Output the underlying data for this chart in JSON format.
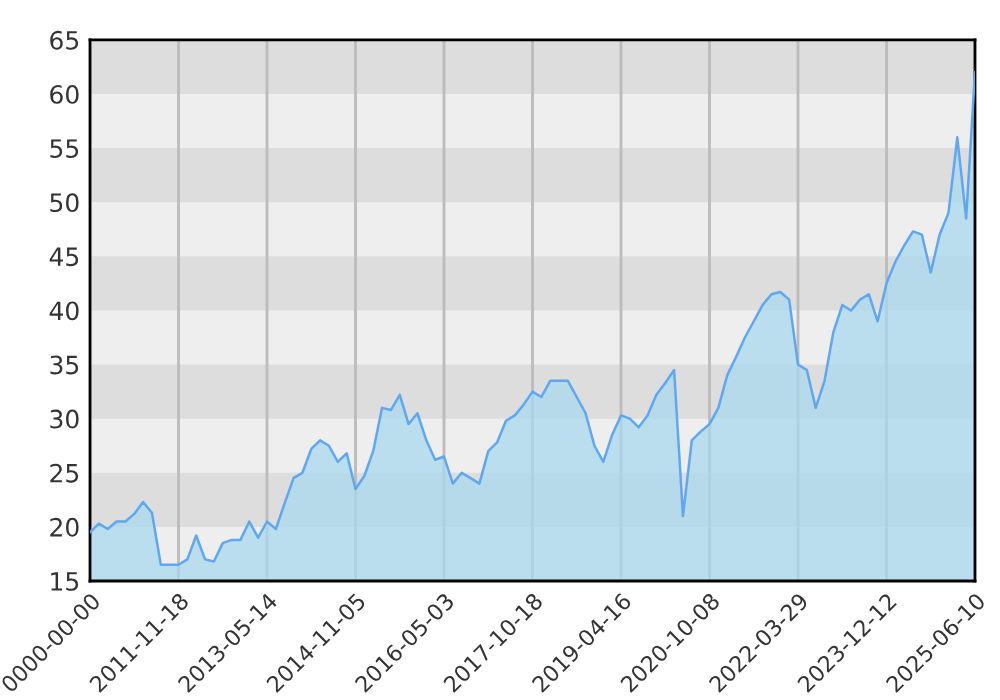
{
  "chart_data": {
    "type": "area",
    "categories": [
      "0000-00-00",
      null,
      null,
      null,
      null,
      null,
      null,
      null,
      null,
      null,
      "2011-11-18",
      null,
      null,
      null,
      null,
      null,
      null,
      null,
      null,
      null,
      "2013-05-14",
      null,
      null,
      null,
      null,
      null,
      null,
      null,
      null,
      null,
      "2014-11-05",
      null,
      null,
      null,
      null,
      null,
      null,
      null,
      null,
      null,
      "2016-05-03",
      null,
      null,
      null,
      null,
      null,
      null,
      null,
      null,
      null,
      "2017-10-18",
      null,
      null,
      null,
      null,
      null,
      null,
      null,
      null,
      null,
      "2019-04-16",
      null,
      null,
      null,
      null,
      null,
      null,
      null,
      null,
      null,
      "2020-10-08",
      null,
      null,
      null,
      null,
      null,
      null,
      null,
      null,
      null,
      "2022-03-29",
      null,
      null,
      null,
      null,
      null,
      null,
      null,
      null,
      null,
      "2023-12-12",
      null,
      null,
      null,
      null,
      null,
      null,
      null,
      null,
      null,
      "2025-06-10"
    ],
    "series": [
      {
        "color": "#5fa8f0",
        "values": [
          19.5,
          20.3,
          19.8,
          20.5,
          20.5,
          21.2,
          22.3,
          21.3,
          16.5,
          16.5,
          16.5,
          17,
          19.2,
          17,
          16.8,
          18.5,
          18.8,
          18.8,
          20.5,
          19,
          20.5,
          19.8,
          22.2,
          24.5,
          25,
          27.2,
          28,
          27.5,
          26,
          26.8,
          23.5,
          24.7,
          27,
          31,
          30.8,
          32.2,
          29.5,
          30.5,
          28,
          26.2,
          26.5,
          24,
          25,
          24.5,
          24,
          27,
          27.8,
          29.8,
          30.3,
          31.3,
          32.5,
          32,
          33.5,
          33.5,
          33.5,
          32,
          30.5,
          27.5,
          26,
          28.5,
          30.3,
          30,
          29.2,
          30.3,
          32.2,
          33.3,
          34.5,
          21,
          28,
          28.8,
          29.5,
          31,
          34,
          35.7,
          37.5,
          39,
          40.5,
          41.5,
          41.7,
          41,
          35,
          34.5,
          31,
          33.5,
          38,
          40.5,
          40,
          41,
          41.5,
          39,
          42.5,
          44.5,
          46,
          47.3,
          47,
          43.5,
          47,
          49,
          56,
          48.5,
          62
        ]
      }
    ],
    "ylim": [
      15,
      65
    ],
    "yticks": [
      15,
      20,
      25,
      30,
      35,
      40,
      45,
      50,
      55,
      60,
      65
    ],
    "bands": [
      {
        "axis": "y",
        "from": 20,
        "to": 25,
        "color": "#dddddd"
      },
      {
        "axis": "y",
        "from": 30,
        "to": 35,
        "color": "#dddddd"
      },
      {
        "axis": "y",
        "from": 40,
        "to": 45,
        "color": "#dddddd"
      },
      {
        "axis": "y",
        "from": 50,
        "to": 55,
        "color": "#dddddd"
      },
      {
        "axis": "y",
        "from": 60,
        "to": 65,
        "color": "#dddddd"
      }
    ],
    "grid": "x"
  }
}
